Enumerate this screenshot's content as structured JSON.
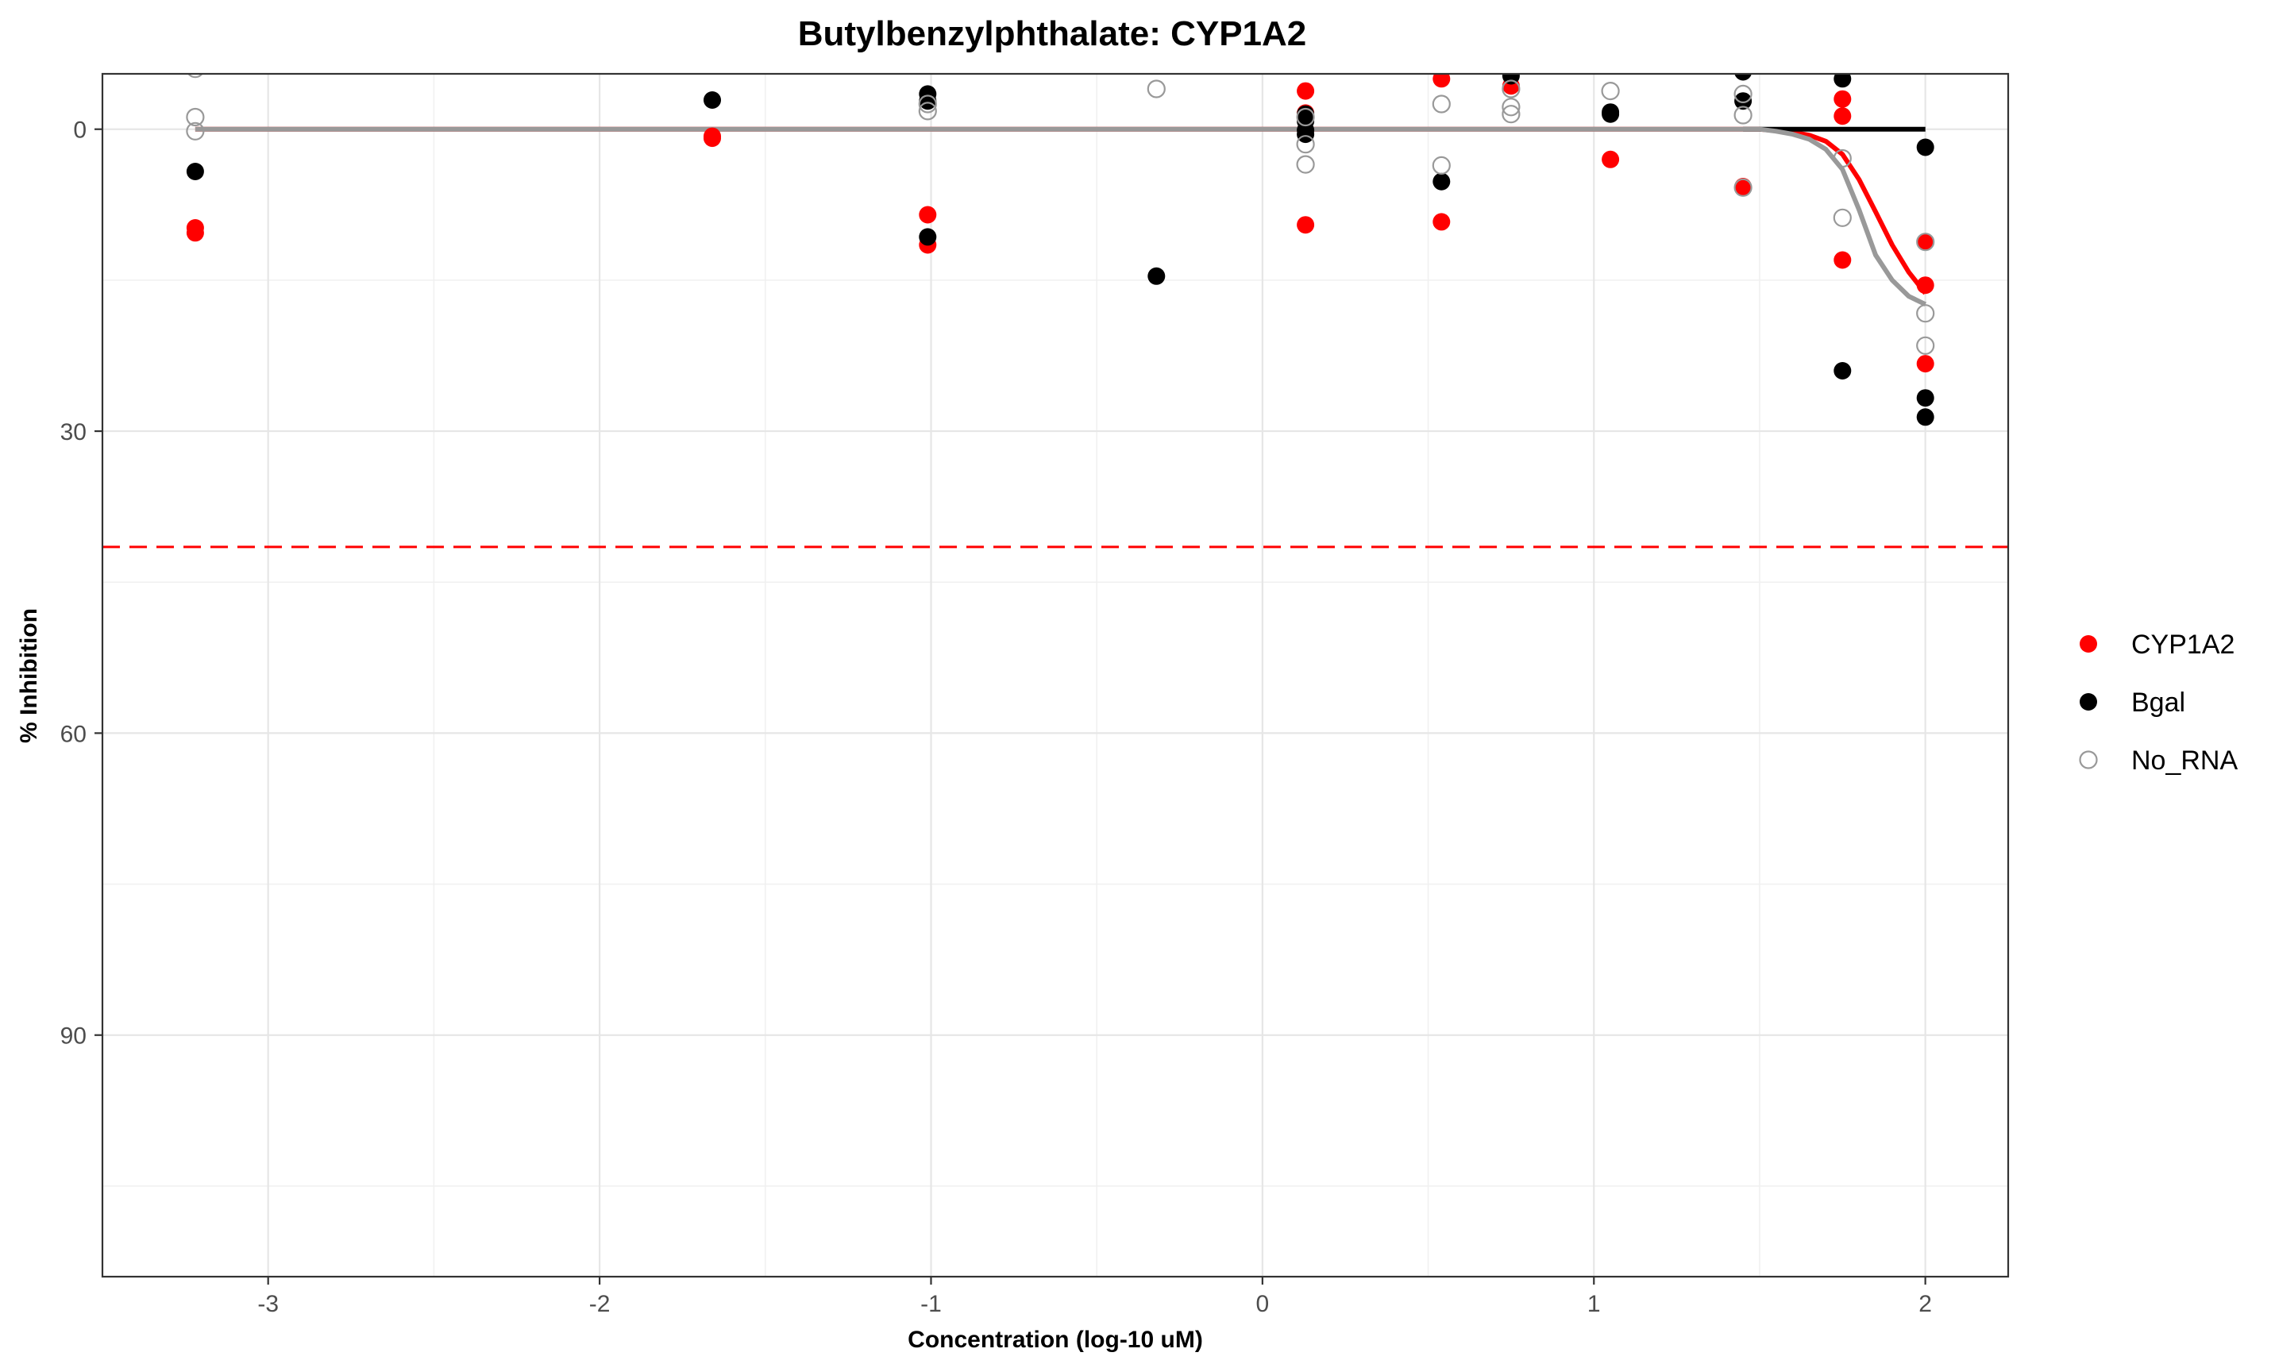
{
  "chart_data": {
    "type": "scatter",
    "title": "Butylbenzylphthalate: CYP1A2",
    "xlabel": "Concentration (log-10 uM)",
    "ylabel": "% Inhibition",
    "xlim": [
      -3.5,
      2.25
    ],
    "ylim": [
      114,
      -5.5
    ],
    "y_reversed": true,
    "x_ticks": [
      -3,
      -2,
      -1,
      0,
      1,
      2
    ],
    "y_ticks": [
      0,
      30,
      60,
      90
    ],
    "grid": true,
    "legend_position": "right",
    "threshold": {
      "y": 41.5,
      "color": "#ff0000",
      "style": "dashed"
    },
    "series": [
      {
        "name": "CYP1A2",
        "color": "#ff0000",
        "marker": "filled",
        "points": [
          [
            -3.22,
            9.8
          ],
          [
            -3.22,
            10.3
          ],
          [
            -1.66,
            0.7
          ],
          [
            -1.66,
            0.9
          ],
          [
            -1.01,
            8.5
          ],
          [
            -1.01,
            11.5
          ],
          [
            0.13,
            -3.8
          ],
          [
            0.13,
            -1.6
          ],
          [
            0.13,
            9.5
          ],
          [
            0.54,
            -5.0
          ],
          [
            0.54,
            9.2
          ],
          [
            0.75,
            -4.3
          ],
          [
            1.05,
            3.0
          ],
          [
            1.45,
            5.7
          ],
          [
            1.75,
            -3.0
          ],
          [
            1.75,
            -1.3
          ],
          [
            1.75,
            13.0
          ],
          [
            2.0,
            11.2
          ],
          [
            2.0,
            15.5
          ],
          [
            2.0,
            23.3
          ]
        ]
      },
      {
        "name": "Bgal",
        "color": "#000000",
        "marker": "filled",
        "points": [
          [
            -3.22,
            4.2
          ],
          [
            -1.66,
            -2.9
          ],
          [
            -1.01,
            -3.5
          ],
          [
            -1.01,
            -2.8
          ],
          [
            -1.01,
            10.7
          ],
          [
            -0.32,
            14.6
          ],
          [
            0.13,
            -1.5
          ],
          [
            0.13,
            -0.8
          ],
          [
            0.13,
            0.1
          ],
          [
            0.13,
            0.5
          ],
          [
            0.54,
            5.2
          ],
          [
            0.75,
            -5.3
          ],
          [
            1.05,
            -1.7
          ],
          [
            1.05,
            -1.5
          ],
          [
            1.45,
            -5.7
          ],
          [
            1.45,
            -2.8
          ],
          [
            1.75,
            -5.0
          ],
          [
            1.75,
            24.0
          ],
          [
            2.0,
            1.8
          ],
          [
            2.0,
            26.7
          ],
          [
            2.0,
            28.6
          ]
        ]
      },
      {
        "name": "No_RNA",
        "color": "#999999",
        "marker": "hollow",
        "points": [
          [
            -3.22,
            -6.0
          ],
          [
            -3.22,
            -1.2
          ],
          [
            -3.22,
            0.2
          ],
          [
            -1.01,
            -2.5
          ],
          [
            -1.01,
            -1.8
          ],
          [
            -0.32,
            -4.0
          ],
          [
            0.13,
            -1.2
          ],
          [
            0.13,
            1.5
          ],
          [
            0.13,
            3.5
          ],
          [
            0.54,
            -2.5
          ],
          [
            0.54,
            3.6
          ],
          [
            0.75,
            -4.0
          ],
          [
            0.75,
            -2.2
          ],
          [
            0.75,
            -1.5
          ],
          [
            1.05,
            -3.8
          ],
          [
            1.45,
            -1.4
          ],
          [
            1.45,
            5.8
          ],
          [
            1.45,
            -3.5
          ],
          [
            1.75,
            2.9
          ],
          [
            1.75,
            8.8
          ],
          [
            2.0,
            11.2
          ],
          [
            2.0,
            18.3
          ],
          [
            2.0,
            21.5
          ]
        ]
      }
    ],
    "curves": [
      {
        "name": "CYP1A2",
        "color": "#ff0000",
        "points": [
          [
            -3.22,
            0
          ],
          [
            1.5,
            0
          ],
          [
            1.6,
            0.3
          ],
          [
            1.65,
            0.6
          ],
          [
            1.7,
            1.2
          ],
          [
            1.75,
            2.5
          ],
          [
            1.8,
            5.0
          ],
          [
            1.85,
            8.2
          ],
          [
            1.9,
            11.5
          ],
          [
            1.95,
            14.2
          ],
          [
            2.0,
            16.3
          ]
        ]
      },
      {
        "name": "Bgal",
        "color": "#000000",
        "points": [
          [
            1.45,
            0
          ],
          [
            2.0,
            0
          ]
        ]
      },
      {
        "name": "No_RNA",
        "color": "#999999",
        "points": [
          [
            -3.22,
            0
          ],
          [
            1.5,
            0
          ],
          [
            1.55,
            0.2
          ],
          [
            1.6,
            0.5
          ],
          [
            1.65,
            1.0
          ],
          [
            1.7,
            2.0
          ],
          [
            1.75,
            4.0
          ],
          [
            1.8,
            8.0
          ],
          [
            1.85,
            12.5
          ],
          [
            1.9,
            15.0
          ],
          [
            1.95,
            16.6
          ],
          [
            2.0,
            17.4
          ]
        ]
      }
    ]
  }
}
